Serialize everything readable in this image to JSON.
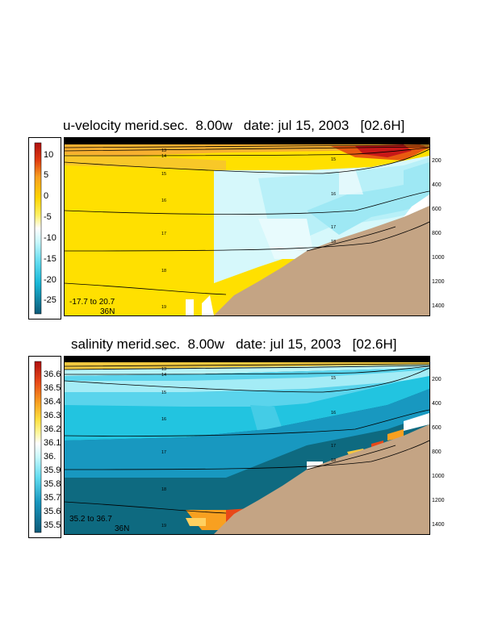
{
  "chart_data": [
    {
      "type": "heatmap",
      "title": "u-velocity merid.sec.  8.00w   date: jul 15, 2003   [02.6H]",
      "colorbar_ticks": [
        "10",
        "5",
        "0",
        "-5",
        "-10",
        "-15",
        "-20",
        "-25"
      ],
      "colorbar_values": [
        10,
        5,
        0,
        -5,
        -10,
        -15,
        -20,
        -25
      ],
      "colorbar_range": [
        -28,
        13
      ],
      "depth_ticks": [
        "200",
        "400",
        "600",
        "800",
        "1000",
        "1200",
        "1400"
      ],
      "depth_values": [
        200,
        400,
        600,
        800,
        1000,
        1200,
        1400
      ],
      "range_text": "-17.7 to  20.7",
      "lat_text": "36N",
      "contour_labels": [
        "13",
        "14",
        "15",
        "16",
        "17",
        "18",
        "19",
        "15",
        "16",
        "17",
        "18"
      ]
    },
    {
      "type": "heatmap",
      "title": "salinity merid.sec.  8.00w   date: jul 15, 2003   [02.6H]",
      "colorbar_ticks": [
        "36.6",
        "36.5",
        "36.4",
        "36.3",
        "36.2",
        "36.1",
        "36.",
        "35.9",
        "35.8",
        "35.7",
        "35.6",
        "35.5"
      ],
      "colorbar_values": [
        36.6,
        36.5,
        36.4,
        36.3,
        36.2,
        36.1,
        36.0,
        35.9,
        35.8,
        35.7,
        35.6,
        35.5
      ],
      "colorbar_range": [
        35.45,
        36.7
      ],
      "depth_ticks": [
        "200",
        "400",
        "600",
        "800",
        "1000",
        "1200",
        "1400"
      ],
      "depth_values": [
        200,
        400,
        600,
        800,
        1000,
        1200,
        1400
      ],
      "range_text": "35.2 to  36.7",
      "lat_text": "36N",
      "contour_labels": [
        "13",
        "14",
        "15",
        "16",
        "17",
        "18",
        "19",
        "15",
        "16",
        "17",
        "18"
      ]
    }
  ],
  "colors": {
    "land": "#c4a484",
    "yellow": "#ffe000",
    "light_cyan": "#b8f4f8",
    "cyan": "#22c4e0",
    "dark_teal": "#0e6a80",
    "orange": "#f47c10",
    "red": "#c81818"
  }
}
